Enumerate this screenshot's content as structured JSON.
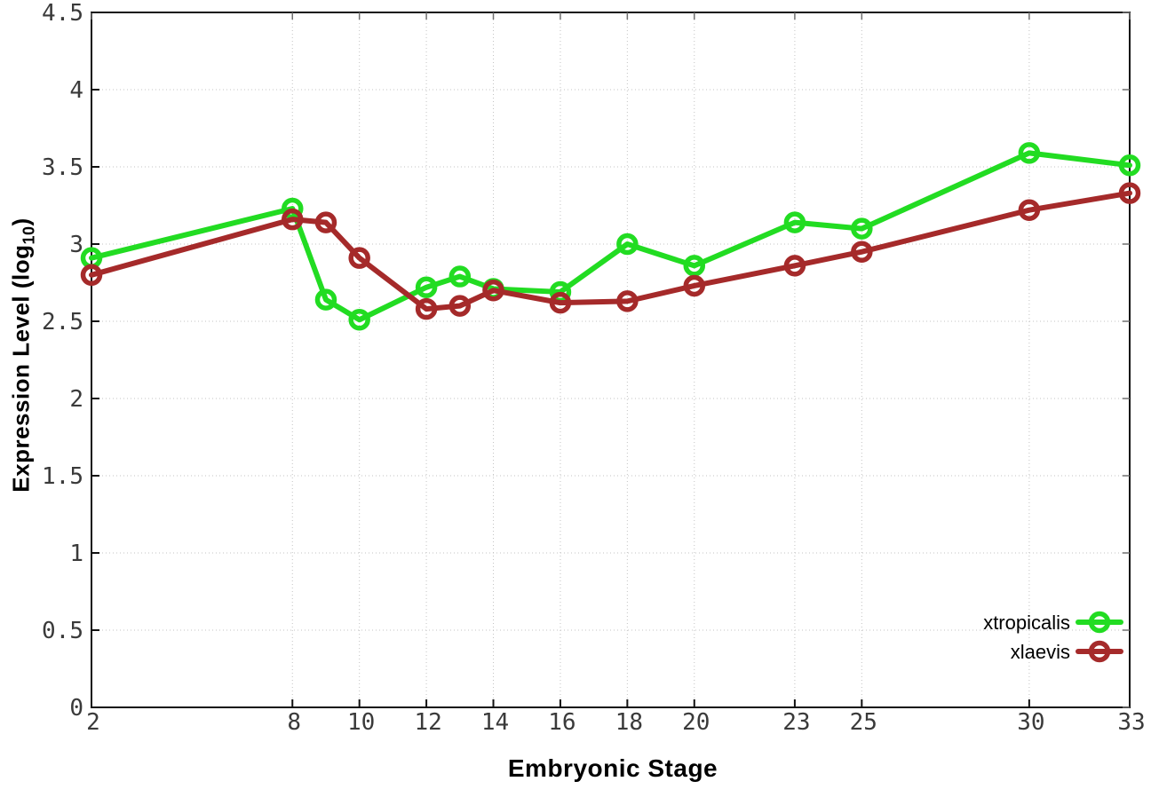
{
  "chart_data": {
    "type": "line",
    "title": "",
    "xlabel": "Embryonic Stage",
    "ylabel": "Expression Level (log10)",
    "ylabel_parts": {
      "prefix": "Expression Level (log",
      "sub": "10",
      "suffix": ")"
    },
    "xlim": [
      2,
      33
    ],
    "ylim": [
      0,
      4.5
    ],
    "grid": true,
    "legend_position": "bottom-right",
    "x_ticks": [
      2,
      8,
      10,
      12,
      14,
      16,
      18,
      20,
      23,
      25,
      30,
      33
    ],
    "x_tick_labels": [
      "2",
      "8",
      "10",
      "12",
      "14",
      "16",
      "18",
      "20",
      "23",
      "25",
      "30",
      "33"
    ],
    "y_ticks": [
      0,
      0.5,
      1,
      1.5,
      2,
      2.5,
      3,
      3.5,
      4,
      4.5
    ],
    "y_tick_labels": [
      "0",
      "0.5",
      "1",
      "1.5",
      "2",
      "2.5",
      "3",
      "3.5",
      "4",
      "4.5"
    ],
    "x": [
      2,
      8,
      9,
      10,
      12,
      13,
      14,
      16,
      18,
      20,
      23,
      25,
      30,
      33
    ],
    "series": [
      {
        "name": "xtropicalis",
        "color": "#22dc22",
        "marker": "open-circle",
        "values": [
          2.91,
          3.23,
          2.64,
          2.51,
          2.72,
          2.79,
          2.71,
          2.69,
          3.0,
          2.86,
          3.14,
          3.1,
          3.59,
          3.51
        ]
      },
      {
        "name": "xlaevis",
        "color": "#a52a2a",
        "marker": "open-circle",
        "values": [
          2.8,
          3.16,
          3.14,
          2.91,
          2.58,
          2.6,
          2.7,
          2.62,
          2.63,
          2.73,
          2.86,
          2.95,
          3.22,
          3.33
        ]
      }
    ],
    "axis_colors": {
      "border": "#111111",
      "grid": "#c3c3c3",
      "tick_label": "#3a3a3a"
    }
  }
}
